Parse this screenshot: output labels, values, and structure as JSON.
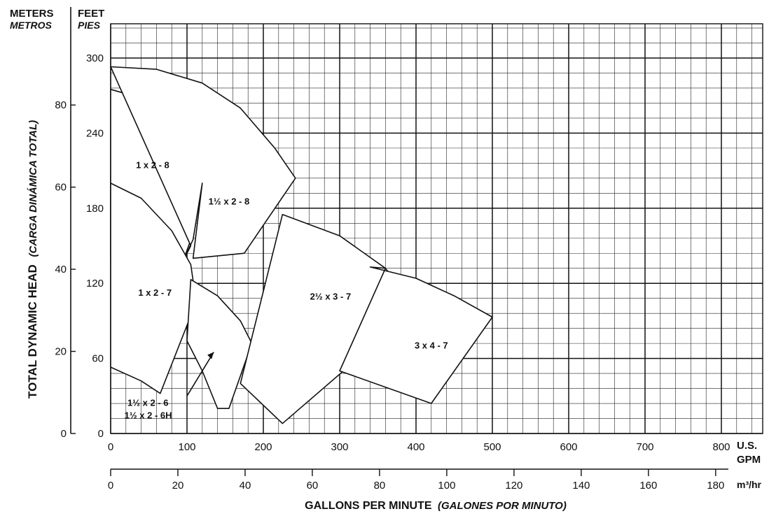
{
  "chart_data": {
    "type": "area",
    "title": "",
    "units": {
      "left_top": "METERS",
      "left_sub": "METROS",
      "right_top": "FEET",
      "right_sub": "PIES"
    },
    "ylabel_main": "TOTAL DYNAMIC HEAD",
    "ylabel_sub": "(CARGA DINÁMICA TOTAL)",
    "xlabel_main": "GALLONS PER MINUTE",
    "xlabel_sub": "(GALONES POR MINUTO)",
    "x_unit_gpm": [
      "U.S.",
      "GPM"
    ],
    "x_unit_m3": "m³/hr",
    "xlim_gpm": [
      0,
      855
    ],
    "ylim_feet": [
      0,
      330
    ],
    "grid": true,
    "x_ticks_gpm": [
      "0",
      "100",
      "200",
      "300",
      "400",
      "500",
      "600",
      "700",
      "800"
    ],
    "x_ticks_m3hr": [
      "0",
      "20",
      "40",
      "60",
      "80",
      "100",
      "120",
      "140",
      "160",
      "180"
    ],
    "y_ticks_feet": [
      "60",
      "120",
      "180",
      "240",
      "300"
    ],
    "y_ticks_meters": [
      "0",
      "20",
      "40",
      "60",
      "80"
    ],
    "y_ticks_feet_zero": "0",
    "regions": [
      {
        "name": "1 x 2 - 8",
        "label": {
          "gpm": 55,
          "ft": 212
        },
        "outline": [
          [
            0,
            275
          ],
          [
            40,
            268
          ],
          [
            80,
            253
          ],
          [
            105,
            235
          ],
          [
            120,
            200
          ],
          [
            108,
            160
          ],
          [
            95,
            138
          ],
          [
            0,
            138
          ]
        ]
      },
      {
        "name": "11/2 x 2 - 8",
        "label": {
          "gpm": 155,
          "ft": 183
        },
        "outline": [
          [
            0,
            293
          ],
          [
            60,
            291
          ],
          [
            120,
            280
          ],
          [
            170,
            260
          ],
          [
            215,
            228
          ],
          [
            242,
            204
          ],
          [
            175,
            144
          ],
          [
            108,
            140
          ],
          [
            120,
            200
          ],
          [
            108,
            155
          ],
          [
            95,
            138
          ],
          [
            105,
            150
          ]
        ]
      },
      {
        "name": "1 x 2 - 7",
        "label": {
          "gpm": 58,
          "ft": 110
        },
        "outline": [
          [
            0,
            200
          ],
          [
            40,
            188
          ],
          [
            80,
            162
          ],
          [
            105,
            135
          ],
          [
            112,
            105
          ],
          [
            65,
            32
          ],
          [
            40,
            42
          ],
          [
            0,
            53
          ]
        ]
      },
      {
        "name": "11/2 x 2 - 6 / 11/2 x 2 - 6H",
        "label": {
          "gpm": 75,
          "ft": 18
        },
        "outline": [
          [
            105,
            123
          ],
          [
            140,
            110
          ],
          [
            170,
            90
          ],
          [
            185,
            72
          ],
          [
            155,
            20
          ],
          [
            140,
            20
          ],
          [
            120,
            50
          ],
          [
            100,
            74
          ]
        ]
      },
      {
        "name": "21/2 x 3 - 7",
        "label": {
          "gpm": 288,
          "ft": 107
        },
        "outline": [
          [
            225,
            175
          ],
          [
            300,
            158
          ],
          [
            360,
            132
          ],
          [
            400,
            100
          ],
          [
            225,
            8
          ],
          [
            170,
            40
          ],
          [
            225,
            175
          ]
        ]
      },
      {
        "name": "3 x 4 - 7",
        "label": {
          "gpm": 420,
          "ft": 68
        },
        "outline": [
          [
            340,
            133
          ],
          [
            400,
            124
          ],
          [
            450,
            110
          ],
          [
            500,
            93
          ],
          [
            420,
            24
          ],
          [
            300,
            50
          ],
          [
            360,
            132
          ]
        ]
      }
    ]
  }
}
